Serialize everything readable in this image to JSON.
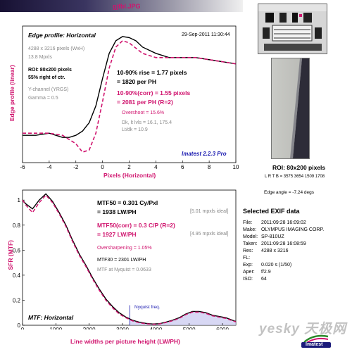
{
  "header": {
    "filename": "gjfbl.JPG"
  },
  "edge_panel": {
    "title": "Edge profile: Horizontal",
    "datetime": "29-Sep-2011 11:30:44",
    "info": [
      "4288 x 3216 pixels (WxH)",
      "13.8 Mpxls"
    ],
    "roi": [
      "ROI: 80x200 pixels",
      "55% right of ctr."
    ],
    "channel": [
      "Y-channel  (YRGS)",
      "Gamma = 0.5"
    ],
    "rise_lines": [
      "10-90% rise = 1.77 pixels",
      "= 1820 per PH"
    ],
    "corr_lines": [
      "10-90%(corr) = 1.55 pixels",
      "= 2081 per PH  (R=2)"
    ],
    "overshoot": "Overshoot = 15.6%",
    "dk_lines": [
      "Dk, lt lvls = 16.1, 175.4",
      "Lt/dk = 10.9"
    ],
    "version": "Imatest 2.2.3 Pro",
    "ylabel": "Edge profile (linear)",
    "xlabel": "Pixels (Horizontal)"
  },
  "mtf_panel": {
    "title": "MTF: Horizontal",
    "mtf50": "MTF50 = 0.301 Cy/Pxl",
    "mtf50_b": "= 1938 LW/PH",
    "mtf50_ideal": "[5.01 mpxls ideal]",
    "mtf50corr": "MTF50(corr) = 0.3 C/P  (R=2)",
    "mtf50corr_b": "= 1927 LW/PH",
    "mtf50corr_ideal": "[4.95 mpxls ideal]",
    "oversharp": "Oversharpening = 1.05%",
    "mtf30": "MTF30 = 2301 LW/PH",
    "nyq_text": "MTF at Nyquist = 0.0633",
    "nyq_label": "Nyquist freq.",
    "ylabel": "SFR (MTF)",
    "xlabel": "Line widths per picture height (LW/PH)"
  },
  "roi_caption": "ROI: 80x200 pixels",
  "roi_coords": "L R T B = 3575 3654 1509 1708",
  "edge_angle": "Edge angle = -7.24 degs",
  "exif": {
    "title": "Selected EXIF data",
    "rows": [
      [
        "File:",
        "2011:09:28 16:09:02"
      ],
      [
        "Make:",
        "OLYMPUS IMAGING CORP."
      ],
      [
        "Model:",
        "SP-810UZ"
      ],
      [
        "Taken:",
        "2011:09:28 16:08:59"
      ],
      [
        "Res:",
        "4288 x 3216"
      ],
      [
        "FL:",
        ""
      ],
      [
        "Exp:",
        "0.020 s  (1/50)"
      ],
      [
        "Aper:",
        "f/2.9"
      ],
      [
        "ISO:",
        "64"
      ]
    ]
  },
  "watermark": "yesky 天极网",
  "logo_text": "Imatest",
  "chart_data": [
    {
      "type": "line",
      "title": "Edge profile: Horizontal",
      "xlabel": "Pixels (Horizontal)",
      "ylabel": "Edge profile (linear)",
      "xlim": [
        -6,
        10
      ],
      "xticks": [
        -6,
        -4,
        -2,
        0,
        2,
        4,
        6,
        8,
        10
      ],
      "series": [
        {
          "name": "",
          "color": "#000000",
          "style": "solid",
          "x": [
            -6,
            -5,
            -4,
            -3,
            -2.5,
            -2,
            -1.5,
            -1,
            -0.5,
            0,
            0.5,
            1,
            1.5,
            2,
            2.5,
            3,
            4,
            5,
            6,
            7,
            8,
            9,
            10
          ],
          "y": [
            0.53,
            0.53,
            0.54,
            0.52,
            0.52,
            0.53,
            0.55,
            0.59,
            0.67,
            0.8,
            0.92,
            0.98,
            1.0,
            0.995,
            0.98,
            0.95,
            0.92,
            0.9,
            0.9,
            0.9,
            0.89,
            0.88,
            0.87
          ]
        },
        {
          "name": "",
          "color": "#d0146e",
          "style": "dashed",
          "x": [
            -6,
            -4,
            -3,
            -2,
            -1.5,
            -1,
            -0.5,
            0,
            0.5,
            1,
            1.5,
            2,
            2.5,
            3,
            4,
            5,
            6,
            7,
            8,
            9,
            10
          ],
          "y": [
            0.54,
            0.54,
            0.53,
            0.49,
            0.45,
            0.46,
            0.54,
            0.69,
            0.85,
            0.95,
            0.98,
            0.97,
            0.945,
            0.92,
            0.9,
            0.9,
            0.9,
            0.9,
            0.89,
            0.88,
            0.87
          ]
        }
      ]
    },
    {
      "type": "line",
      "title": "MTF: Horizontal",
      "xlabel": "Line widths per picture height (LW/PH)",
      "ylabel": "SFR (MTF)",
      "xlim": [
        0,
        6400
      ],
      "ylim": [
        0,
        1.08
      ],
      "xticks": [
        0,
        1000,
        2000,
        3000,
        4000,
        5000,
        6000
      ],
      "yticks": [
        0,
        0.2,
        0.4,
        0.6,
        0.8,
        1
      ],
      "nyquist": 3216,
      "series": [
        {
          "name": "",
          "color": "#000000",
          "style": "solid",
          "x": [
            0,
            100,
            300,
            500,
            700,
            900,
            1100,
            1300,
            1500,
            1700,
            1900,
            2100,
            2300,
            2500,
            2700,
            2900,
            3100,
            3300,
            3500,
            3700,
            3900,
            4100,
            4300,
            4500,
            4700,
            4900,
            5100,
            5300,
            5500,
            5700,
            5900,
            6100,
            6300,
            6400
          ],
          "y": [
            1.0,
            0.97,
            0.93,
            1.0,
            1.05,
            0.99,
            0.9,
            0.8,
            0.68,
            0.57,
            0.48,
            0.38,
            0.29,
            0.21,
            0.15,
            0.1,
            0.065,
            0.04,
            0.025,
            0.015,
            0.01,
            0.012,
            0.025,
            0.04,
            0.06,
            0.09,
            0.11,
            0.11,
            0.1,
            0.08,
            0.07,
            0.06,
            0.04,
            0.03
          ]
        },
        {
          "name": "",
          "color": "#d0146e",
          "style": "dashed",
          "x": [
            0,
            100,
            300,
            500,
            700,
            900,
            1100,
            1300,
            1500,
            1700,
            1900,
            2100,
            2300,
            2500,
            2700,
            2900,
            3100,
            3300,
            3500,
            3700,
            3900,
            4100,
            4300,
            4500,
            4700,
            4900,
            5100,
            5300,
            5500,
            5700,
            5900,
            6100,
            6300,
            6400
          ],
          "y": [
            1.0,
            0.96,
            0.9,
            0.98,
            1.04,
            0.98,
            0.89,
            0.79,
            0.67,
            0.56,
            0.47,
            0.37,
            0.28,
            0.2,
            0.14,
            0.09,
            0.06,
            0.035,
            0.02,
            0.012,
            0.008,
            0.01,
            0.022,
            0.036,
            0.055,
            0.085,
            0.105,
            0.105,
            0.095,
            0.075,
            0.065,
            0.055,
            0.036,
            0.027
          ]
        }
      ]
    }
  ]
}
